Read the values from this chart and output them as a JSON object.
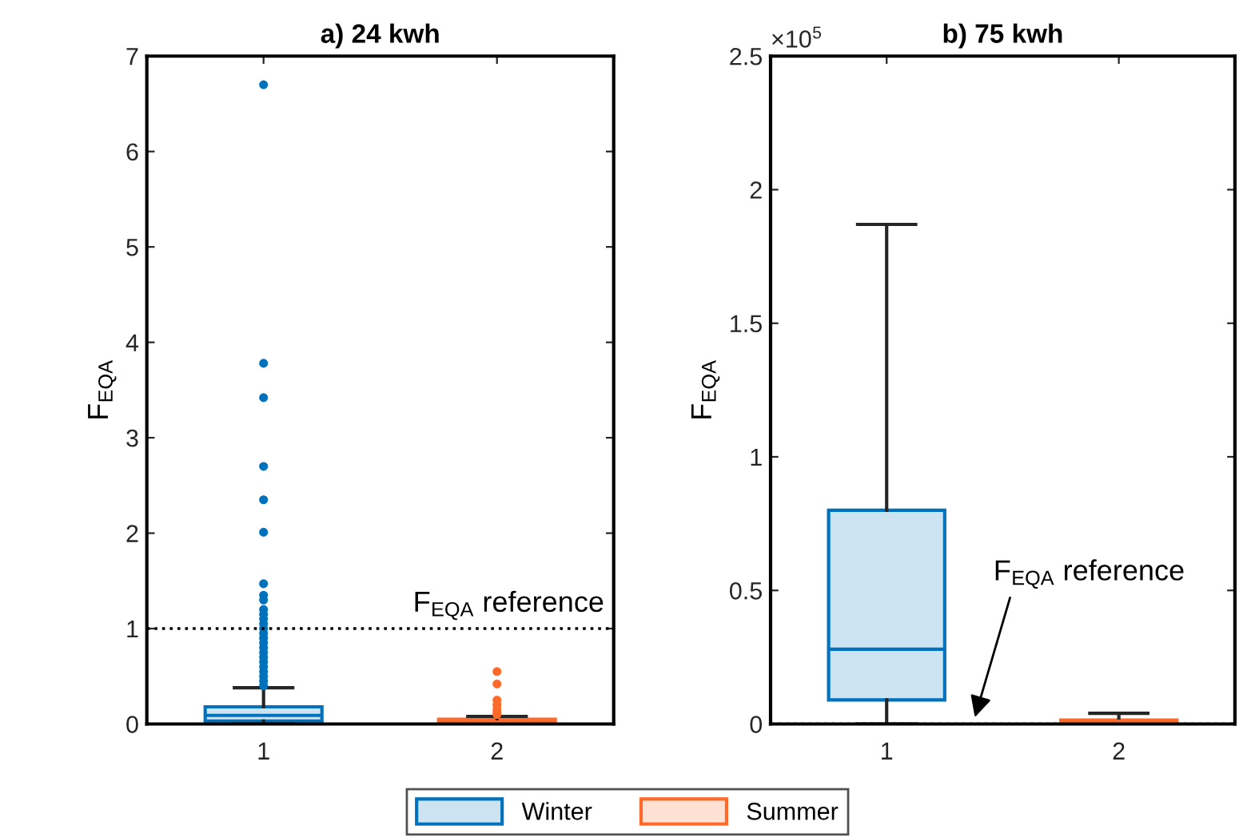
{
  "chart_data": [
    {
      "type": "box",
      "title": "a) 24 kwh",
      "ylabel": "F$_{EQA}$",
      "categories": [
        "1",
        "2"
      ],
      "ylim": [
        0,
        7
      ],
      "yticks": [
        0,
        1,
        2,
        3,
        4,
        5,
        6,
        7
      ],
      "grid": false,
      "legend": "bottom",
      "series": [
        {
          "name": "Winter",
          "color": "#0072bd",
          "boxes": [
            {
              "low": 0,
              "q1": 0.03,
              "median": 0.09,
              "q3": 0.18,
              "high": 0.38,
              "outliers": [
                0.4,
                0.45,
                0.5,
                0.55,
                0.6,
                0.65,
                0.7,
                0.75,
                0.8,
                0.85,
                0.9,
                0.95,
                1.0,
                1.05,
                1.1,
                1.15,
                1.2,
                1.3,
                1.35,
                1.47,
                2.01,
                2.35,
                2.7,
                3.42,
                3.78,
                6.7
              ]
            },
            null
          ]
        },
        {
          "name": "Summer",
          "color": "#ff6a2a",
          "boxes": [
            null,
            {
              "low": 0,
              "q1": 0,
              "median": 0.02,
              "q3": 0.05,
              "high": 0.08,
              "outliers": [
                0.1,
                0.12,
                0.15,
                0.2,
                0.25,
                0.42,
                0.55
              ]
            }
          ]
        }
      ],
      "ref_lines": [
        {
          "axis": "y",
          "value": 1,
          "line_style": "dotted",
          "color": "#000000"
        }
      ],
      "annotations": [
        "F$_{EQA}$ reference"
      ]
    },
    {
      "type": "box",
      "title": "b) 75 kwh",
      "ylabel": "F$_{EQA}$",
      "categories": [
        "1",
        "2"
      ],
      "ylim": [
        0,
        2.5
      ],
      "yticks": [
        0,
        0.5,
        1,
        1.5,
        2,
        2.5
      ],
      "grid": false,
      "series": [
        {
          "color": "#0072bd",
          "boxes": [
            {
              "low": 0,
              "q1": 0.09,
              "median": 0.28,
              "q3": 0.8,
              "high": 1.87
            },
            null
          ]
        },
        {
          "color": "#ff6a2a",
          "boxes": [
            null,
            {
              "low": 0,
              "q1": 0,
              "median": 0.01,
              "q3": 0.015,
              "high": 0.04
            }
          ]
        }
      ],
      "ref_lines": [
        {
          "axis": "y",
          "value": 1e-05,
          "line_style": "dotted",
          "color": "#000000"
        }
      ],
      "annotations": [
        "×10$^{5}$",
        "F$_{EQA}$ reference"
      ]
    }
  ]
}
